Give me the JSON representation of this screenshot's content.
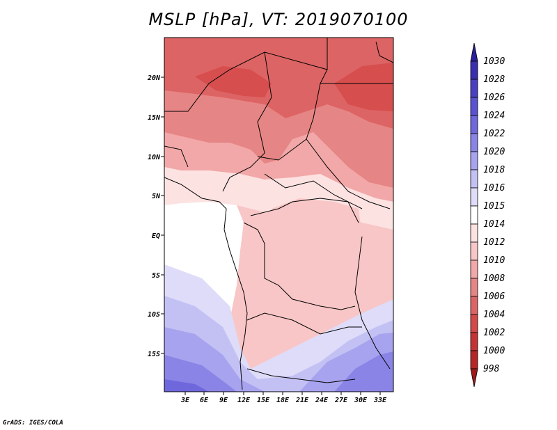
{
  "title": "MSLP [hPa], VT: 2019070100",
  "footer": "GrADS: IGES/COLA",
  "map": {
    "lon_labels": [
      "3E",
      "6E",
      "9E",
      "12E",
      "15E",
      "18E",
      "21E",
      "24E",
      "27E",
      "30E",
      "33E"
    ],
    "lat_labels": [
      "20N",
      "15N",
      "10N",
      "5N",
      "EQ",
      "5S",
      "10S",
      "15S"
    ]
  },
  "colorbar": {
    "levels": [
      "1030",
      "1028",
      "1026",
      "1024",
      "1022",
      "1020",
      "1018",
      "1016",
      "1015",
      "1014",
      "1012",
      "1010",
      "1008",
      "1006",
      "1004",
      "1002",
      "1000",
      "998"
    ],
    "colors": [
      "#2a1f9c",
      "#3a2fb0",
      "#4a3fc2",
      "#5a52d0",
      "#6f67dc",
      "#8a84e6",
      "#a7a3ee",
      "#c3c1f4",
      "#dedcf8",
      "#ffffff",
      "#fde2e2",
      "#f8c6c6",
      "#f2a8a8",
      "#e68585",
      "#dd6464",
      "#d44848",
      "#c53434",
      "#b52626",
      "#a01818"
    ]
  }
}
